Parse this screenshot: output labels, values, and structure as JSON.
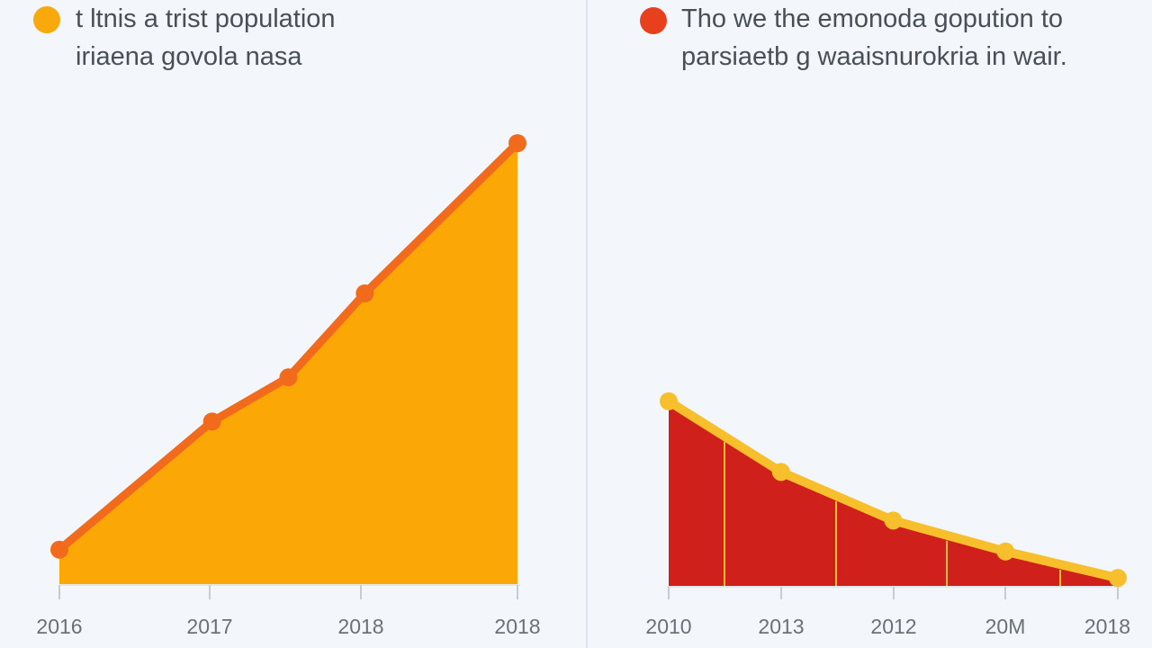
{
  "colors": {
    "background": "#f3f7fb",
    "left_fill": "#fba705",
    "left_line": "#f26b1d",
    "right_fill": "#d0201c",
    "right_line": "#f8bf2c",
    "right_dot": "#e8401c",
    "left_dot": "#f9a90c"
  },
  "chart_data": [
    {
      "type": "area",
      "title": "t ltnis a trist population",
      "subtitle": "iriaena govola nasa",
      "x": [
        "2016",
        "2017",
        "2018",
        "2018"
      ],
      "points": [
        {
          "x": 0.0,
          "y": 8
        },
        {
          "x": 1.0,
          "y": 37
        },
        {
          "x": 1.5,
          "y": 47
        },
        {
          "x": 2.0,
          "y": 66
        },
        {
          "x": 3.0,
          "y": 100
        }
      ],
      "ylim": [
        0,
        110
      ],
      "grid": false
    },
    {
      "type": "area",
      "title": "Tho we the emonoda gopution to",
      "subtitle": "parsiaetb g waaisnurokria in wair.",
      "x": [
        "2010",
        "2013",
        "2012",
        "20M",
        "2018"
      ],
      "points": [
        {
          "x": 0,
          "y": 42
        },
        {
          "x": 1,
          "y": 26
        },
        {
          "x": 2,
          "y": 15
        },
        {
          "x": 3,
          "y": 8
        },
        {
          "x": 4,
          "y": 2
        }
      ],
      "ylim": [
        0,
        110
      ],
      "grid": false
    }
  ]
}
